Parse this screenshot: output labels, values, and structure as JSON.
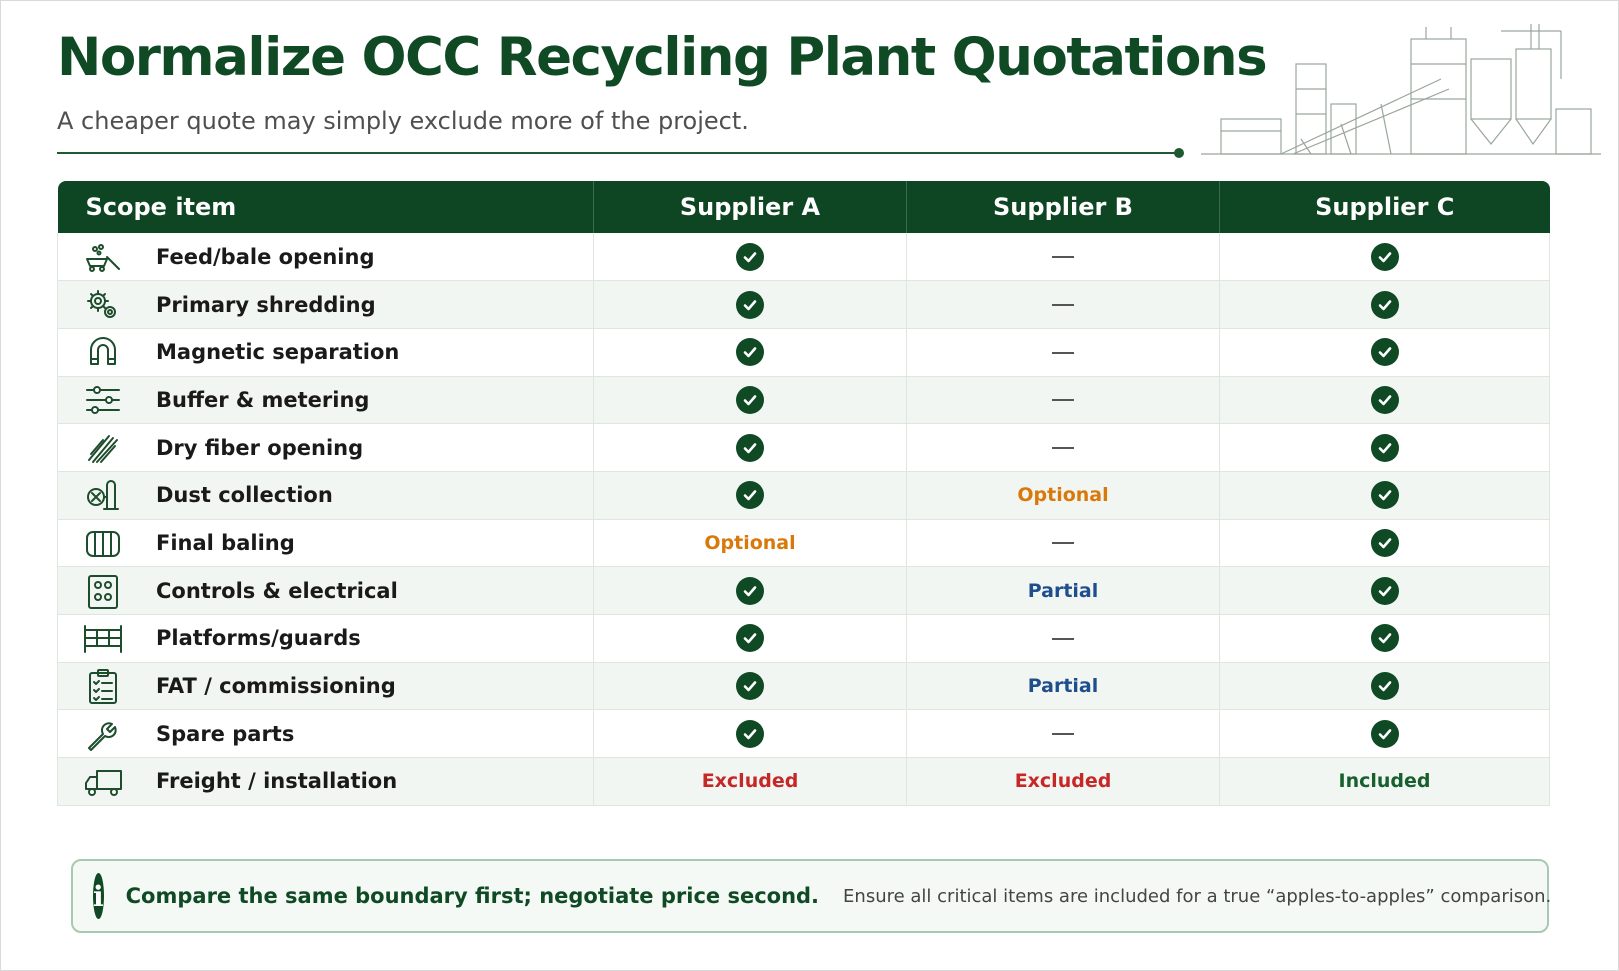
{
  "header": {
    "title": "Normalize OCC Recycling Plant Quotations",
    "subtitle": "A cheaper quote may simply exclude more of the project."
  },
  "table": {
    "columns": [
      "Scope item",
      "Supplier A",
      "Supplier B",
      "Supplier C"
    ],
    "rows": [
      {
        "label": "Feed/bale opening",
        "icon": "conveyor-feed-icon",
        "a": "check",
        "b": "dash",
        "c": "check"
      },
      {
        "label": "Primary shredding",
        "icon": "gears-icon",
        "a": "check",
        "b": "dash",
        "c": "check"
      },
      {
        "label": "Magnetic separation",
        "icon": "magnet-icon",
        "a": "check",
        "b": "dash",
        "c": "check"
      },
      {
        "label": "Buffer & metering",
        "icon": "sliders-icon",
        "a": "check",
        "b": "dash",
        "c": "check"
      },
      {
        "label": "Dry fiber opening",
        "icon": "fiber-icon",
        "a": "check",
        "b": "dash",
        "c": "check"
      },
      {
        "label": "Dust collection",
        "icon": "dust-collector-icon",
        "a": "check",
        "b": "Optional",
        "c": "check"
      },
      {
        "label": "Final baling",
        "icon": "bale-icon",
        "a": "Optional",
        "b": "dash",
        "c": "check"
      },
      {
        "label": "Controls & electrical",
        "icon": "control-panel-icon",
        "a": "check",
        "b": "Partial",
        "c": "check"
      },
      {
        "label": "Platforms/guards",
        "icon": "platform-icon",
        "a": "check",
        "b": "dash",
        "c": "check"
      },
      {
        "label": "FAT / commissioning",
        "icon": "checklist-icon",
        "a": "check",
        "b": "Partial",
        "c": "check"
      },
      {
        "label": "Spare parts",
        "icon": "wrench-icon",
        "a": "check",
        "b": "dash",
        "c": "check"
      },
      {
        "label": "Freight / installation",
        "icon": "truck-icon",
        "a": "Excluded",
        "b": "Excluded",
        "c": "Included"
      }
    ]
  },
  "note": {
    "strong": "Compare the same boundary first; negotiate price second.",
    "text": "Ensure all critical items are included for a true “apples-to-apples” comparison."
  },
  "colors": {
    "brand": "#0f4a25",
    "optional": "#d9790a",
    "partial": "#1f4e8c",
    "excluded": "#c62828",
    "included": "#17602e"
  }
}
